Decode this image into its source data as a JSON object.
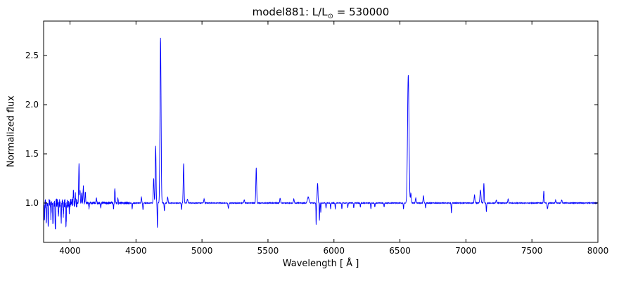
{
  "figure": {
    "title_prefix": "model881: L/L",
    "title_sub": "⊙",
    "title_suffix": " = 530000",
    "xlabel": "Wavelength [ Å ]",
    "ylabel": "Normalized flux"
  },
  "chart_data": {
    "type": "line",
    "title": "model881: L/L⊙ = 530000",
    "xlabel": "Wavelength [ Å ]",
    "ylabel": "Normalized flux",
    "xlim": [
      3800,
      8000
    ],
    "ylim": [
      0.6,
      2.85
    ],
    "xticks": [
      4000,
      4500,
      5000,
      5500,
      6000,
      6500,
      7000,
      7500,
      8000
    ],
    "yticks": [
      1.0,
      1.5,
      2.0,
      2.5
    ],
    "ytick_labels": [
      "1.0",
      "1.5",
      "2.0",
      "2.5"
    ],
    "line_color": "#0000ff",
    "baseline": 1.0,
    "noise_default": 0.003,
    "noise_regions": [
      {
        "from": 3800,
        "to": 4055,
        "amp": 0.045
      },
      {
        "from": 4055,
        "to": 4450,
        "amp": 0.012
      }
    ],
    "features": [
      {
        "c": 3806,
        "h": -0.18,
        "w": 2
      },
      {
        "c": 3820,
        "h": -0.22,
        "w": 2
      },
      {
        "c": 3835,
        "h": -0.25,
        "w": 2
      },
      {
        "c": 3856,
        "h": -0.15,
        "w": 2
      },
      {
        "c": 3871,
        "h": -0.2,
        "w": 2
      },
      {
        "c": 3889,
        "h": -0.27,
        "w": 2
      },
      {
        "c": 3912,
        "h": -0.12,
        "w": 2
      },
      {
        "c": 3933,
        "h": -0.22,
        "w": 2
      },
      {
        "c": 3950,
        "h": -0.12,
        "w": 2
      },
      {
        "c": 3970,
        "h": -0.25,
        "w": 2
      },
      {
        "c": 3995,
        "h": -0.1,
        "w": 2
      },
      {
        "c": 4026,
        "h": 0.1,
        "w": 2
      },
      {
        "c": 4042,
        "h": 0.08,
        "w": 2
      },
      {
        "c": 4068,
        "h": 0.4,
        "w": 2.5
      },
      {
        "c": 4076,
        "h": 0.12,
        "w": 2
      },
      {
        "c": 4089,
        "h": 0.1,
        "w": 2
      },
      {
        "c": 4101,
        "h": 0.17,
        "w": 2.5
      },
      {
        "c": 4116,
        "h": 0.12,
        "w": 2
      },
      {
        "c": 4144,
        "h": -0.06,
        "w": 2
      },
      {
        "c": 4200,
        "h": 0.05,
        "w": 2.5
      },
      {
        "c": 4233,
        "h": -0.05,
        "w": 2
      },
      {
        "c": 4330,
        "h": -0.06,
        "w": 2
      },
      {
        "c": 4340,
        "h": 0.14,
        "w": 2.5
      },
      {
        "c": 4363,
        "h": 0.05,
        "w": 2
      },
      {
        "c": 4471,
        "h": -0.06,
        "w": 2
      },
      {
        "c": 4541,
        "h": 0.06,
        "w": 2.5
      },
      {
        "c": 4553,
        "h": -0.07,
        "w": 2
      },
      {
        "c": 4634,
        "h": 0.25,
        "w": 3
      },
      {
        "c": 4649,
        "h": 0.58,
        "w": 3
      },
      {
        "c": 4662,
        "h": -0.25,
        "w": 1.8
      },
      {
        "c": 4686,
        "h": 1.68,
        "w": 4
      },
      {
        "c": 4715,
        "h": -0.08,
        "w": 2
      },
      {
        "c": 4740,
        "h": 0.06,
        "w": 3
      },
      {
        "c": 4845,
        "h": -0.07,
        "w": 2
      },
      {
        "c": 4861,
        "h": 0.4,
        "w": 3
      },
      {
        "c": 4890,
        "h": 0.04,
        "w": 3
      },
      {
        "c": 5016,
        "h": 0.04,
        "w": 3
      },
      {
        "c": 5200,
        "h": -0.05,
        "w": 3
      },
      {
        "c": 5320,
        "h": 0.03,
        "w": 3
      },
      {
        "c": 5411,
        "h": 0.36,
        "w": 3
      },
      {
        "c": 5592,
        "h": 0.05,
        "w": 3
      },
      {
        "c": 5696,
        "h": 0.04,
        "w": 3
      },
      {
        "c": 5805,
        "h": 0.06,
        "w": 6
      },
      {
        "c": 5865,
        "h": -0.22,
        "w": 1.5
      },
      {
        "c": 5876,
        "h": 0.2,
        "w": 3
      },
      {
        "c": 5890,
        "h": -0.18,
        "w": 1.5
      },
      {
        "c": 5900,
        "h": -0.1,
        "w": 1.5
      },
      {
        "c": 5940,
        "h": -0.05,
        "w": 2
      },
      {
        "c": 5975,
        "h": -0.06,
        "w": 2
      },
      {
        "c": 6010,
        "h": -0.06,
        "w": 2
      },
      {
        "c": 6060,
        "h": -0.06,
        "w": 2
      },
      {
        "c": 6105,
        "h": -0.05,
        "w": 2
      },
      {
        "c": 6150,
        "h": -0.05,
        "w": 2
      },
      {
        "c": 6200,
        "h": -0.04,
        "w": 2
      },
      {
        "c": 6280,
        "h": -0.06,
        "w": 2
      },
      {
        "c": 6310,
        "h": -0.04,
        "w": 2
      },
      {
        "c": 6380,
        "h": -0.04,
        "w": 2
      },
      {
        "c": 6527,
        "h": -0.06,
        "w": 2
      },
      {
        "c": 6563,
        "h": 1.3,
        "w": 5.5
      },
      {
        "c": 6583,
        "h": 0.1,
        "w": 3
      },
      {
        "c": 6620,
        "h": 0.05,
        "w": 3
      },
      {
        "c": 6678,
        "h": 0.07,
        "w": 3
      },
      {
        "c": 6695,
        "h": -0.05,
        "w": 2
      },
      {
        "c": 6890,
        "h": -0.1,
        "w": 2
      },
      {
        "c": 7065,
        "h": 0.08,
        "w": 3
      },
      {
        "c": 7110,
        "h": 0.13,
        "w": 4
      },
      {
        "c": 7136,
        "h": 0.2,
        "w": 2.5
      },
      {
        "c": 7155,
        "h": -0.09,
        "w": 2
      },
      {
        "c": 7230,
        "h": 0.03,
        "w": 3
      },
      {
        "c": 7320,
        "h": 0.04,
        "w": 3
      },
      {
        "c": 7590,
        "h": 0.12,
        "w": 2.5
      },
      {
        "c": 7618,
        "h": -0.06,
        "w": 3
      },
      {
        "c": 7680,
        "h": 0.03,
        "w": 3
      },
      {
        "c": 7726,
        "h": 0.03,
        "w": 3
      }
    ]
  }
}
